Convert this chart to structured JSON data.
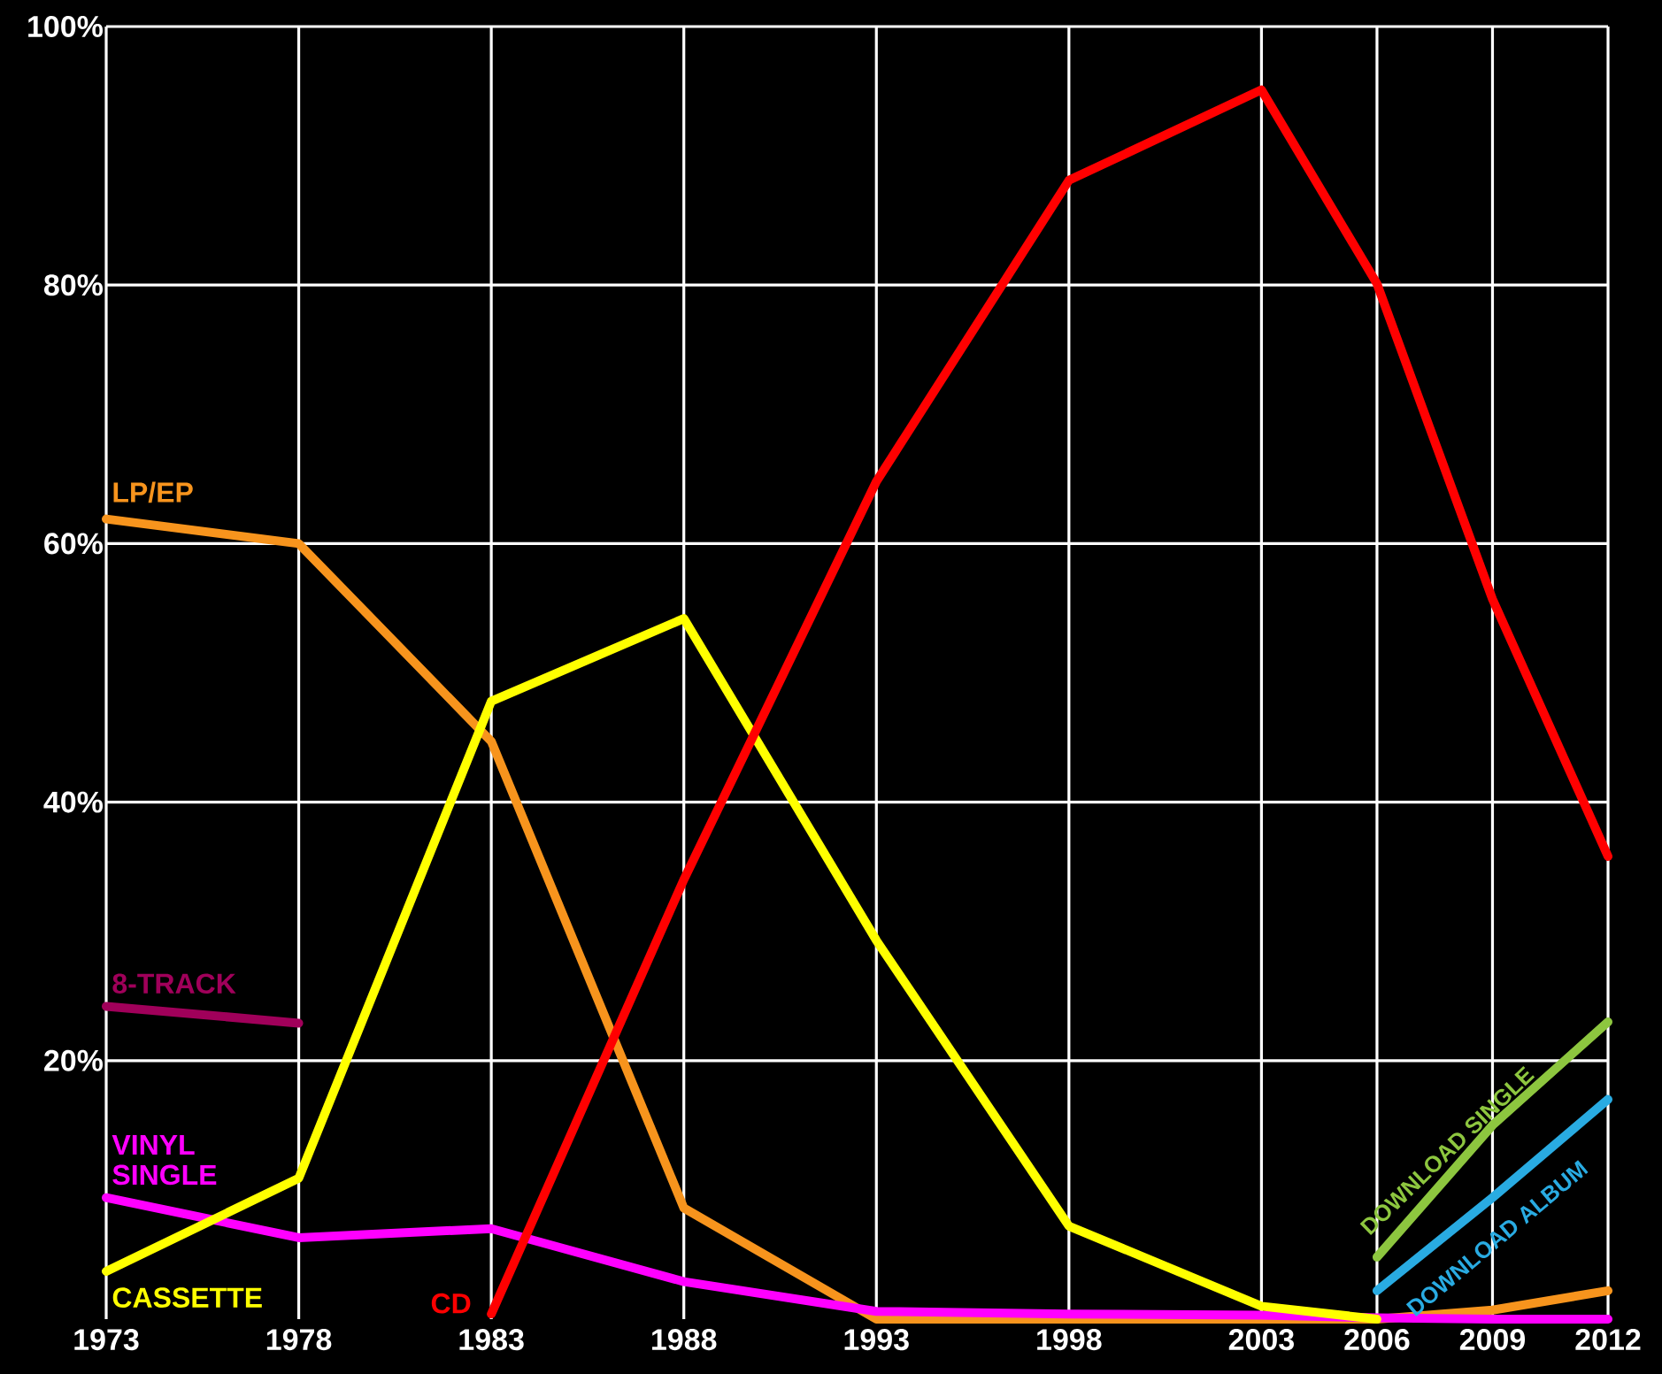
{
  "chart_data": {
    "type": "line",
    "x": [
      1973,
      1978,
      1983,
      1988,
      1993,
      1998,
      2003,
      2006,
      2009,
      2012
    ],
    "series": [
      {
        "name": "LP/EP",
        "color": "#f7941d",
        "values": [
          61.9,
          60.0,
          44.7,
          8.6,
          0,
          0,
          0,
          0,
          0.7,
          2.2
        ]
      },
      {
        "name": "8-TRACK",
        "color": "#a0005a",
        "values": [
          24.2,
          22.9,
          null,
          null,
          null,
          null,
          null,
          null,
          null,
          null
        ]
      },
      {
        "name": "VINYL SINGLE",
        "color": "#ff00ff",
        "values": [
          9.4,
          6.3,
          7.0,
          2.9,
          0.6,
          0.4,
          0.3,
          0.1,
          0,
          0
        ]
      },
      {
        "name": "CASSETTE",
        "color": "#ffff00",
        "values": [
          3.7,
          10.9,
          47.8,
          54.2,
          29.3,
          7.2,
          1.0,
          0,
          null,
          null
        ]
      },
      {
        "name": "CD",
        "color": "#ff0000",
        "values": [
          null,
          null,
          0.4,
          34.0,
          64.8,
          88.1,
          95.1,
          80.1,
          55.7,
          35.8
        ]
      },
      {
        "name": "DOWNLOAD SINGLE",
        "color": "#8dc63f",
        "values": [
          null,
          null,
          null,
          null,
          null,
          null,
          null,
          4.8,
          15.0,
          23.0
        ]
      },
      {
        "name": "DOWNLOAD ALBUM",
        "color": "#29abe2",
        "values": [
          null,
          null,
          null,
          null,
          null,
          null,
          null,
          2.2,
          9.4,
          17.0
        ]
      }
    ],
    "xlim": [
      1973,
      2012
    ],
    "ylim": [
      0,
      100
    ],
    "xticks": [
      1973,
      1978,
      1983,
      1988,
      1993,
      1998,
      2003,
      2006,
      2009,
      2012
    ],
    "yticks": [
      {
        "value": 20,
        "label": "20%"
      },
      {
        "value": 40,
        "label": "40%"
      },
      {
        "value": 60,
        "label": "60%"
      },
      {
        "value": 80,
        "label": "80%"
      },
      {
        "value": 100,
        "label": "100%"
      }
    ],
    "grid": true,
    "legend": false,
    "line_style": "solid"
  }
}
